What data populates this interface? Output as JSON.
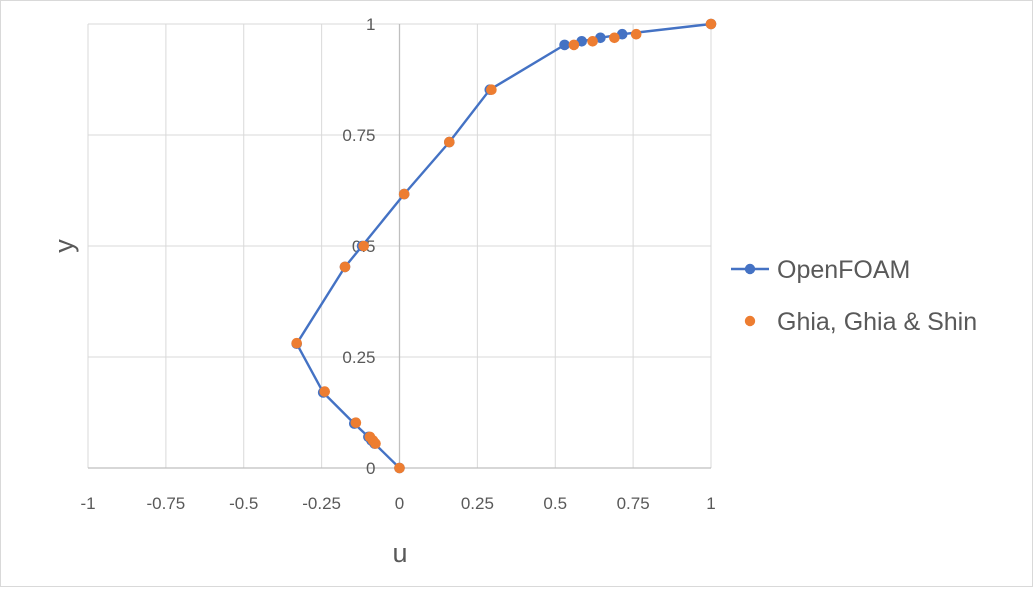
{
  "chart_data": {
    "type": "scatter",
    "title": "",
    "xlabel": "u",
    "ylabel": "y",
    "xlim": [
      -1,
      1
    ],
    "ylim": [
      0,
      1
    ],
    "x_ticks": [
      "-1",
      "-0.75",
      "-0.5",
      "-0.25",
      "0",
      "0.25",
      "0.5",
      "0.75",
      "1"
    ],
    "y_ticks": [
      "0",
      "0.25",
      "0.5",
      "0.75",
      "1"
    ],
    "grid": true,
    "legend_position": "right",
    "series": [
      {
        "name": "OpenFOAM",
        "style": "line-markers",
        "color": "#4472c4",
        "points": [
          [
            0,
            0
          ],
          [
            -0.08,
            0.055
          ],
          [
            -0.09,
            0.062
          ],
          [
            -0.1,
            0.07
          ],
          [
            -0.145,
            0.1
          ],
          [
            -0.245,
            0.17
          ],
          [
            -0.33,
            0.28
          ],
          [
            -0.175,
            0.453
          ],
          [
            -0.12,
            0.5
          ],
          [
            0.015,
            0.617
          ],
          [
            0.16,
            0.734
          ],
          [
            0.29,
            0.852
          ],
          [
            0.53,
            0.953
          ],
          [
            0.585,
            0.961
          ],
          [
            0.645,
            0.969
          ],
          [
            0.715,
            0.977
          ],
          [
            1,
            1
          ]
        ]
      },
      {
        "name": "Ghia, Ghia & Shin",
        "style": "markers",
        "color": "#ed7d31",
        "points": [
          [
            0,
            0
          ],
          [
            -0.077,
            0.055
          ],
          [
            -0.085,
            0.062
          ],
          [
            -0.095,
            0.07
          ],
          [
            -0.14,
            0.102
          ],
          [
            -0.24,
            0.172
          ],
          [
            -0.33,
            0.281
          ],
          [
            -0.175,
            0.453
          ],
          [
            -0.115,
            0.5
          ],
          [
            0.015,
            0.617
          ],
          [
            0.16,
            0.734
          ],
          [
            0.295,
            0.852
          ],
          [
            0.56,
            0.953
          ],
          [
            0.62,
            0.961
          ],
          [
            0.69,
            0.969
          ],
          [
            0.76,
            0.977
          ],
          [
            1,
            1
          ]
        ]
      }
    ]
  }
}
